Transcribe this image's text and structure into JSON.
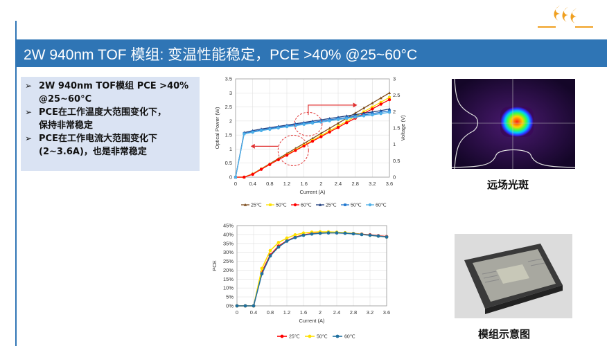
{
  "slide": {
    "title": "2W 940nm TOF 模组: 变温性能稳定，PCE >40% @25~60°C",
    "bullets": [
      {
        "line1": "2W 940nm TOF模组 PCE >40%",
        "line2": "@25~60°C"
      },
      {
        "line1": "PCE在工作温度大范围变化下，",
        "line2": "保持非常稳定"
      },
      {
        "line1": "PCE在工作电流大范围变化下",
        "line2": "(2~3.6A)，也是非常稳定"
      }
    ],
    "far_field_caption": "远场光斑",
    "module_caption": "模组示意图"
  },
  "colors": {
    "title_bar": "#2f75b5",
    "bullet_box": "#dae3f3",
    "logo": "#f0a020",
    "red": "#ff0000",
    "yellow": "#ffe000",
    "brown": "#7f4f1f",
    "navy": "#1f3f7f",
    "blue": "#1f77d0",
    "light_blue": "#4fb0e8",
    "teal": "#1f6f9f"
  },
  "chart_data": [
    {
      "type": "line",
      "xlabel": "Current (A)",
      "ylabel": "Optical Power (W)",
      "y2label": "Voltage (V)",
      "xlim": [
        0,
        3.6
      ],
      "ylim": [
        0,
        3.5
      ],
      "y2lim": [
        0,
        3
      ],
      "x_ticks": [
        "0",
        "0.4",
        "0.8",
        "1.2",
        "1.6",
        "2",
        "2.4",
        "2.8",
        "3.2",
        "3.6"
      ],
      "y_ticks": [
        "0",
        "0.5",
        "1",
        "1.5",
        "2",
        "2.5",
        "3",
        "3.5"
      ],
      "y2_ticks": [
        "0",
        "0.5",
        "1",
        "1.5",
        "2",
        "2.5",
        "3"
      ],
      "x": [
        0,
        0.2,
        0.4,
        0.6,
        0.8,
        1.0,
        1.2,
        1.4,
        1.6,
        1.8,
        2.0,
        2.2,
        2.4,
        2.6,
        2.8,
        3.0,
        3.2,
        3.4,
        3.6
      ],
      "series": [
        {
          "name": "25℃",
          "axis": "power",
          "color": "#7f4f1f",
          "marker": "triangle",
          "values": [
            0,
            0,
            0.12,
            0.3,
            0.48,
            0.66,
            0.84,
            1.02,
            1.2,
            1.38,
            1.56,
            1.74,
            1.92,
            2.1,
            2.28,
            2.46,
            2.64,
            2.82,
            3.0
          ]
        },
        {
          "name": "50℃",
          "axis": "power",
          "color": "#ffe000",
          "marker": "square",
          "values": [
            0,
            0,
            0.11,
            0.29,
            0.46,
            0.63,
            0.8,
            0.97,
            1.14,
            1.31,
            1.48,
            1.65,
            1.82,
            1.99,
            2.16,
            2.33,
            2.5,
            2.67,
            2.84
          ]
        },
        {
          "name": "60℃",
          "axis": "power",
          "color": "#ff0000",
          "marker": "circle",
          "values": [
            0,
            0,
            0.1,
            0.28,
            0.45,
            0.62,
            0.78,
            0.95,
            1.11,
            1.28,
            1.44,
            1.61,
            1.77,
            1.94,
            2.1,
            2.27,
            2.43,
            2.6,
            2.76
          ]
        },
        {
          "name": "25℃",
          "axis": "voltage",
          "color": "#1f3f7f",
          "marker": "triangle",
          "values": [
            0,
            1.36,
            1.42,
            1.47,
            1.51,
            1.55,
            1.59,
            1.63,
            1.67,
            1.71,
            1.75,
            1.79,
            1.83,
            1.87,
            1.91,
            1.95,
            1.99,
            2.03,
            2.08
          ]
        },
        {
          "name": "50℃",
          "axis": "voltage",
          "color": "#1f77d0",
          "marker": "square",
          "values": [
            0,
            1.33,
            1.39,
            1.44,
            1.48,
            1.52,
            1.56,
            1.6,
            1.64,
            1.67,
            1.71,
            1.75,
            1.79,
            1.82,
            1.86,
            1.9,
            1.94,
            1.98,
            2.02
          ]
        },
        {
          "name": "60℃",
          "axis": "voltage",
          "color": "#4fb0e8",
          "marker": "circle",
          "values": [
            0,
            1.32,
            1.37,
            1.42,
            1.46,
            1.5,
            1.54,
            1.57,
            1.61,
            1.65,
            1.68,
            1.72,
            1.76,
            1.79,
            1.83,
            1.87,
            1.9,
            1.94,
            1.98
          ]
        }
      ],
      "legend_position": "bottom",
      "grid": true
    },
    {
      "type": "line",
      "xlabel": "Current (A)",
      "ylabel": "PCE",
      "xlim": [
        0,
        3.6
      ],
      "ylim": [
        0,
        45
      ],
      "x_ticks": [
        "0",
        "0.4",
        "0.8",
        "1.2",
        "1.6",
        "2",
        "2.4",
        "2.8",
        "3.2",
        "3.6"
      ],
      "y_ticks": [
        "0%",
        "5%",
        "10%",
        "15%",
        "20%",
        "25%",
        "30%",
        "35%",
        "40%",
        "45%"
      ],
      "x": [
        0,
        0.2,
        0.4,
        0.6,
        0.8,
        1.0,
        1.2,
        1.4,
        1.6,
        1.8,
        2.0,
        2.2,
        2.4,
        2.6,
        2.8,
        3.0,
        3.2,
        3.4,
        3.6
      ],
      "series": [
        {
          "name": "25℃",
          "color": "#ff0000",
          "values": [
            0,
            0,
            0,
            19,
            28.5,
            33.5,
            36.5,
            38.5,
            39.8,
            40.5,
            40.8,
            41,
            41,
            40.9,
            40.6,
            40.2,
            39.8,
            39.3,
            38.8
          ]
        },
        {
          "name": "50℃",
          "color": "#ffe000",
          "values": [
            0,
            0,
            0,
            21,
            31,
            35.5,
            38,
            39.8,
            40.8,
            41.3,
            41.5,
            41.5,
            41.3,
            41,
            40.6,
            40.1,
            39.6,
            39.1,
            38.6
          ]
        },
        {
          "name": "60℃",
          "color": "#1f6f9f",
          "values": [
            0,
            0,
            0,
            18,
            28,
            33,
            36.3,
            38.3,
            39.6,
            40.3,
            40.7,
            40.9,
            40.9,
            40.7,
            40.4,
            40.0,
            39.6,
            39.1,
            38.6
          ]
        }
      ],
      "legend_position": "bottom",
      "grid": true
    }
  ]
}
